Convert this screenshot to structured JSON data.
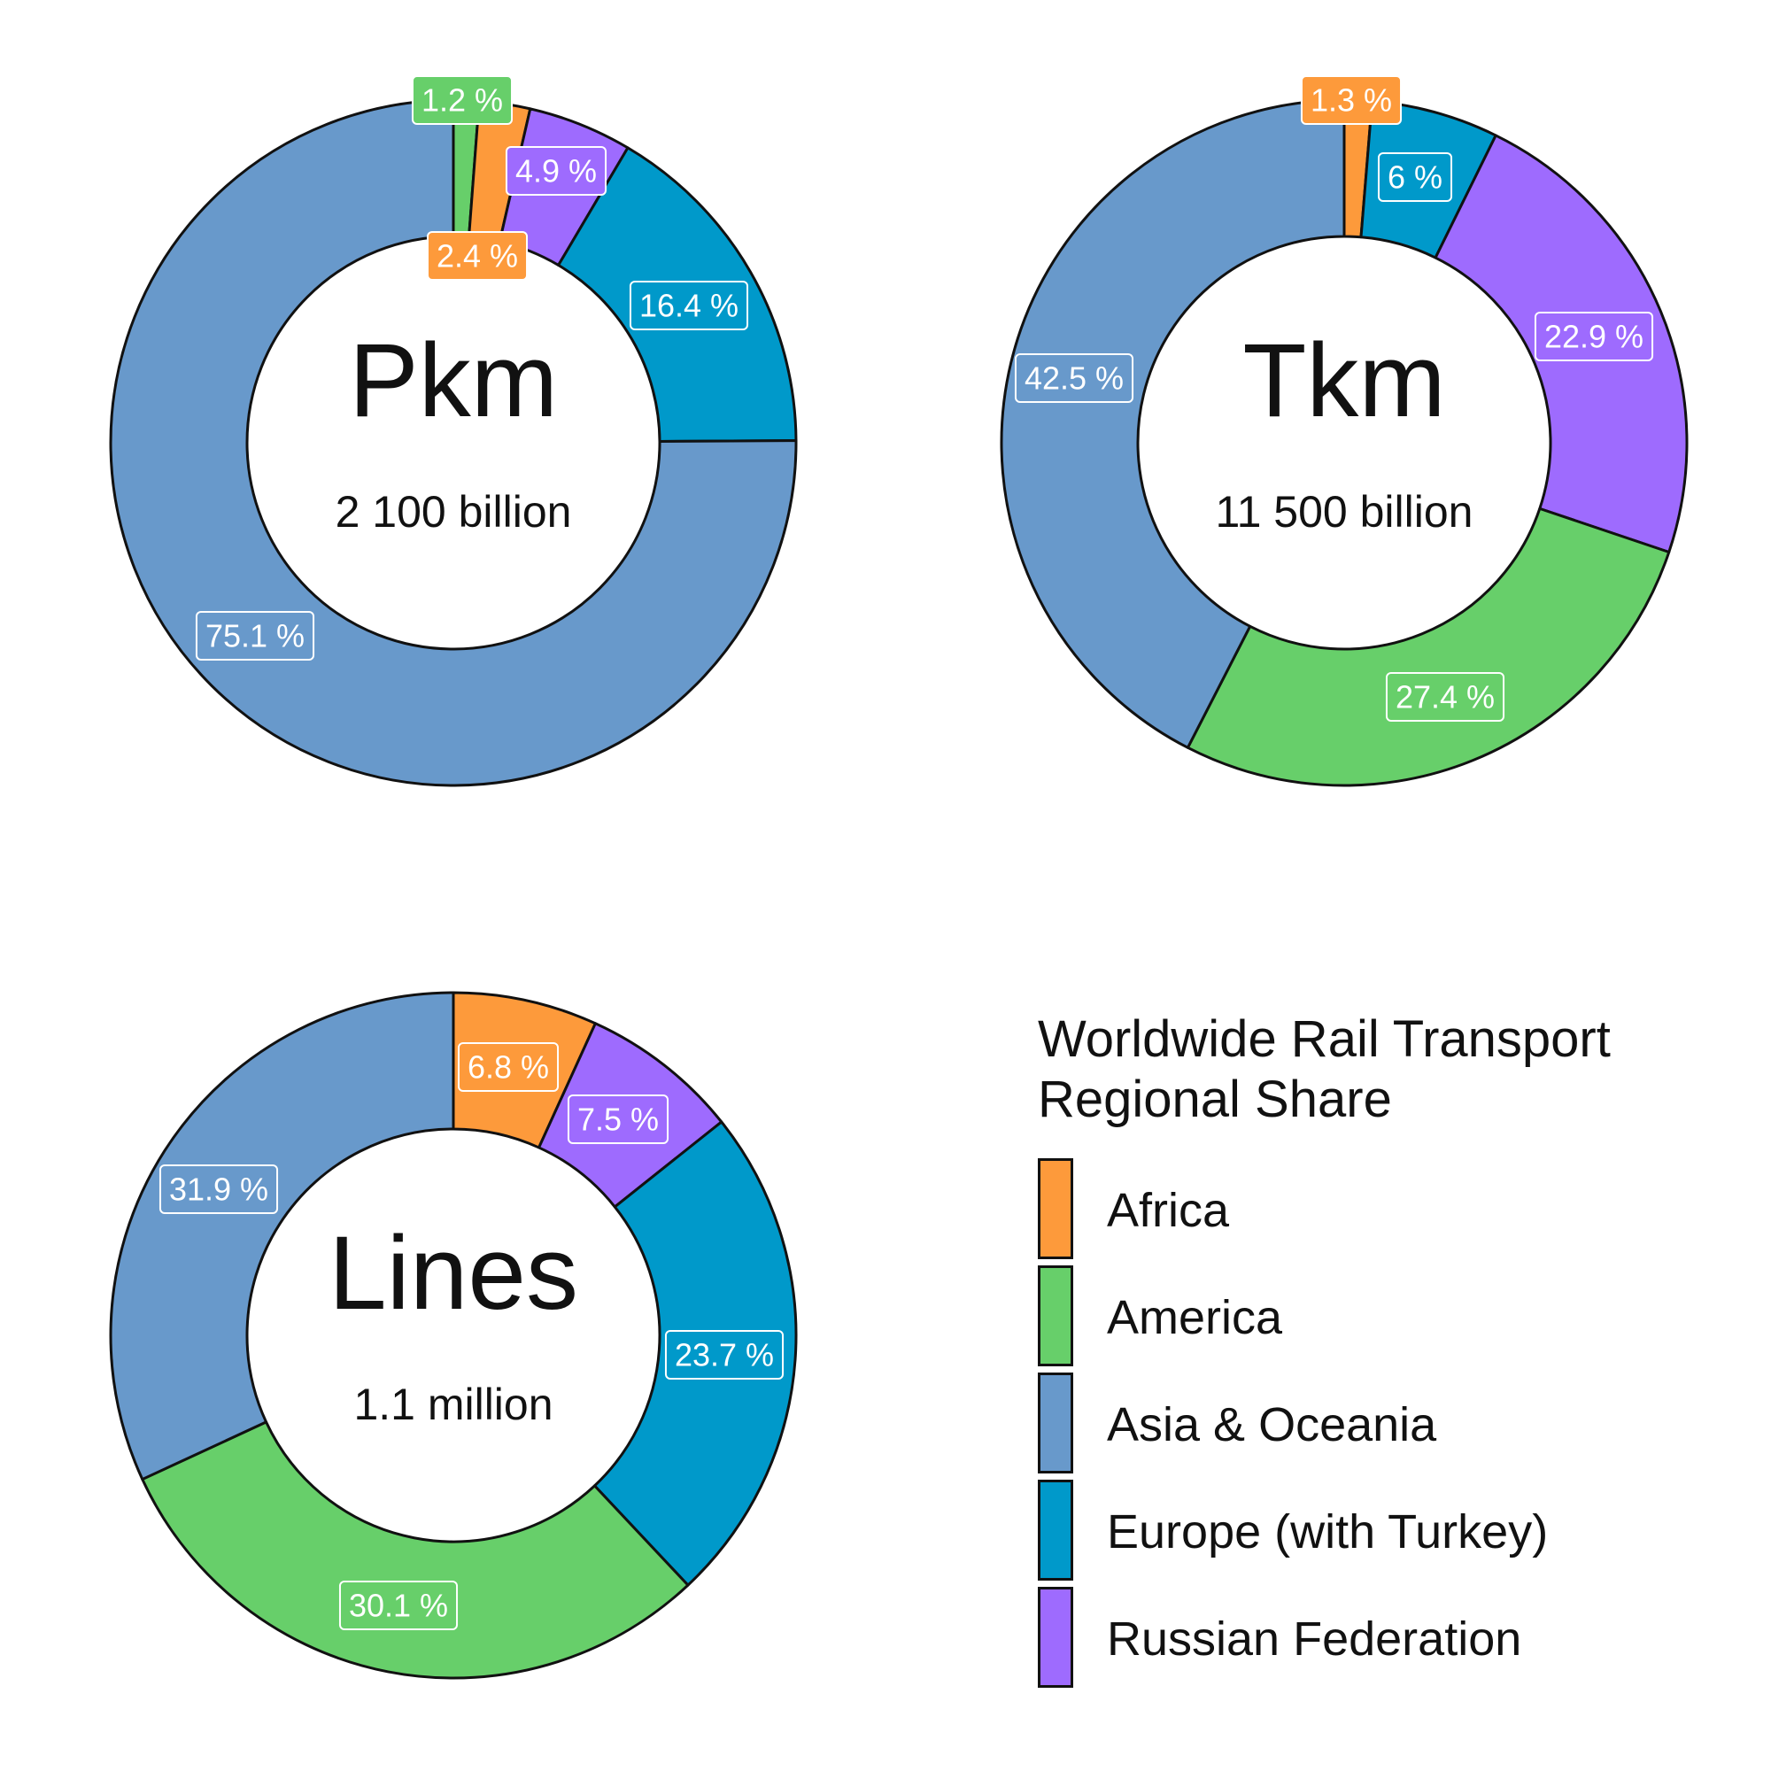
{
  "colors": {
    "Africa": "#FD9A3B",
    "America": "#67CF6A",
    "Asia & Oceania": "#6899CB",
    "Europe (with Turkey)": "#0099CA",
    "Russian Federation": "#9E6BFE"
  },
  "legend": {
    "title_line1": "Worldwide Rail Transport",
    "title_line2": "Regional Share",
    "items": [
      {
        "label": "Africa",
        "color": "#FD9A3B"
      },
      {
        "label": "America",
        "color": "#67CF6A"
      },
      {
        "label": "Asia & Oceania",
        "color": "#6899CB"
      },
      {
        "label": "Europe (with Turkey)",
        "color": "#0099CA"
      },
      {
        "label": "Russian Federation",
        "color": "#9E6BFE"
      }
    ]
  },
  "chart_data": [
    {
      "type": "pie",
      "variant": "donut",
      "title": "Pkm",
      "subtitle": "2 100 billion",
      "start": "12 o'clock",
      "direction": "clockwise",
      "slices": [
        {
          "category": "America",
          "value": 1.2,
          "label": "1.2 %"
        },
        {
          "category": "Africa",
          "value": 2.4,
          "label": "2.4 %"
        },
        {
          "category": "Russian Federation",
          "value": 4.9,
          "label": "4.9 %"
        },
        {
          "category": "Europe (with Turkey)",
          "value": 16.4,
          "label": "16.4 %"
        },
        {
          "category": "Asia & Oceania",
          "value": 75.1,
          "label": "75.1 %"
        }
      ]
    },
    {
      "type": "pie",
      "variant": "donut",
      "title": "Tkm",
      "subtitle": "11 500 billion",
      "start": "12 o'clock",
      "direction": "clockwise",
      "slices": [
        {
          "category": "Africa",
          "value": 1.3,
          "label": "1.3 %"
        },
        {
          "category": "Europe (with Turkey)",
          "value": 6,
          "label": "6 %"
        },
        {
          "category": "Russian Federation",
          "value": 22.9,
          "label": "22.9 %"
        },
        {
          "category": "America",
          "value": 27.4,
          "label": "27.4 %"
        },
        {
          "category": "Asia & Oceania",
          "value": 42.5,
          "label": "42.5 %"
        }
      ]
    },
    {
      "type": "pie",
      "variant": "donut",
      "title": "Lines",
      "subtitle": "1.1 million",
      "start": "12 o'clock",
      "direction": "clockwise",
      "slices": [
        {
          "category": "Africa",
          "value": 6.8,
          "label": "6.8 %"
        },
        {
          "category": "Russian Federation",
          "value": 7.5,
          "label": "7.5 %"
        },
        {
          "category": "Europe (with Turkey)",
          "value": 23.7,
          "label": "23.7 %"
        },
        {
          "category": "America",
          "value": 30.1,
          "label": "30.1 %"
        },
        {
          "category": "Asia & Oceania",
          "value": 31.9,
          "label": "31.9 %"
        }
      ]
    }
  ]
}
